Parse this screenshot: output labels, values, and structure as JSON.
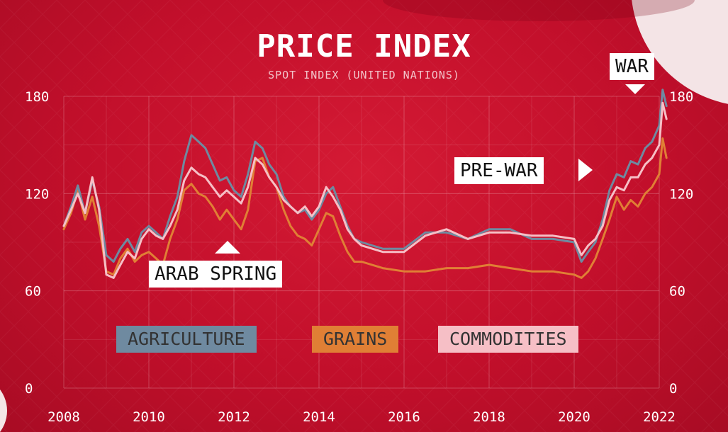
{
  "chart_data": {
    "type": "line",
    "title": "PRICE INDEX",
    "subtitle": "SPOT INDEX (UNITED NATIONS)",
    "xlim": [
      2008,
      2022
    ],
    "ylim": [
      0,
      180
    ],
    "x_ticks": [
      2008,
      2010,
      2012,
      2014,
      2016,
      2018,
      2020,
      2022
    ],
    "y_ticks": [
      0,
      60,
      120,
      180
    ],
    "grid": true,
    "legend_placement": "bottom",
    "series": [
      {
        "name": "AGRICULTURE",
        "color": "#6f8aa0",
        "x": [
          2008.0,
          2008.17,
          2008.33,
          2008.5,
          2008.67,
          2008.83,
          2009.0,
          2009.17,
          2009.33,
          2009.5,
          2009.67,
          2009.83,
          2010.0,
          2010.17,
          2010.33,
          2010.5,
          2010.67,
          2010.83,
          2011.0,
          2011.17,
          2011.33,
          2011.5,
          2011.67,
          2011.83,
          2012.0,
          2012.17,
          2012.33,
          2012.5,
          2012.67,
          2012.83,
          2013.0,
          2013.17,
          2013.33,
          2013.5,
          2013.67,
          2013.83,
          2014.0,
          2014.17,
          2014.33,
          2014.5,
          2014.67,
          2014.83,
          2015.0,
          2015.5,
          2016.0,
          2016.5,
          2017.0,
          2017.5,
          2018.0,
          2018.5,
          2019.0,
          2019.5,
          2020.0,
          2020.17,
          2020.33,
          2020.5,
          2020.67,
          2020.83,
          2021.0,
          2021.17,
          2021.33,
          2021.5,
          2021.67,
          2021.83,
          2022.0,
          2022.08,
          2022.17
        ],
        "values": [
          100,
          112,
          125,
          108,
          128,
          112,
          82,
          78,
          86,
          92,
          84,
          96,
          100,
          96,
          92,
          106,
          118,
          140,
          156,
          152,
          148,
          138,
          128,
          130,
          122,
          118,
          132,
          152,
          148,
          138,
          132,
          118,
          112,
          108,
          110,
          104,
          110,
          120,
          124,
          112,
          100,
          92,
          90,
          86,
          86,
          96,
          96,
          92,
          98,
          98,
          92,
          92,
          90,
          78,
          84,
          90,
          104,
          122,
          132,
          130,
          140,
          138,
          148,
          152,
          162,
          184,
          174
        ]
      },
      {
        "name": "GRAINS",
        "color": "#e07f35",
        "x": [
          2008.0,
          2008.17,
          2008.33,
          2008.5,
          2008.67,
          2008.83,
          2009.0,
          2009.17,
          2009.33,
          2009.5,
          2009.67,
          2009.83,
          2010.0,
          2010.17,
          2010.33,
          2010.5,
          2010.67,
          2010.83,
          2011.0,
          2011.17,
          2011.33,
          2011.5,
          2011.67,
          2011.83,
          2012.0,
          2012.17,
          2012.33,
          2012.5,
          2012.67,
          2012.83,
          2013.0,
          2013.17,
          2013.33,
          2013.5,
          2013.67,
          2013.83,
          2014.0,
          2014.17,
          2014.33,
          2014.5,
          2014.67,
          2014.83,
          2015.0,
          2015.5,
          2016.0,
          2016.5,
          2017.0,
          2017.5,
          2018.0,
          2018.5,
          2019.0,
          2019.5,
          2020.0,
          2020.17,
          2020.33,
          2020.5,
          2020.67,
          2020.83,
          2021.0,
          2021.17,
          2021.33,
          2021.5,
          2021.67,
          2021.83,
          2022.0,
          2022.08,
          2022.17
        ],
        "values": [
          98,
          108,
          122,
          104,
          118,
          100,
          72,
          70,
          80,
          86,
          78,
          82,
          84,
          80,
          76,
          92,
          104,
          122,
          126,
          120,
          118,
          112,
          104,
          110,
          104,
          98,
          110,
          140,
          142,
          130,
          124,
          110,
          100,
          94,
          92,
          88,
          98,
          108,
          106,
          94,
          84,
          78,
          78,
          74,
          72,
          72,
          74,
          74,
          76,
          74,
          72,
          72,
          70,
          68,
          72,
          80,
          92,
          104,
          118,
          110,
          116,
          112,
          120,
          124,
          132,
          154,
          142
        ]
      },
      {
        "name": "COMMODITIES",
        "color": "#f6bfc6",
        "x": [
          2008.0,
          2008.17,
          2008.33,
          2008.5,
          2008.67,
          2008.83,
          2009.0,
          2009.17,
          2009.33,
          2009.5,
          2009.67,
          2009.83,
          2010.0,
          2010.17,
          2010.33,
          2010.5,
          2010.67,
          2010.83,
          2011.0,
          2011.17,
          2011.33,
          2011.5,
          2011.67,
          2011.83,
          2012.0,
          2012.17,
          2012.33,
          2012.5,
          2012.67,
          2012.83,
          2013.0,
          2013.17,
          2013.33,
          2013.5,
          2013.67,
          2013.83,
          2014.0,
          2014.17,
          2014.33,
          2014.5,
          2014.67,
          2014.83,
          2015.0,
          2015.5,
          2016.0,
          2016.5,
          2017.0,
          2017.5,
          2018.0,
          2018.5,
          2019.0,
          2019.5,
          2020.0,
          2020.17,
          2020.33,
          2020.5,
          2020.67,
          2020.83,
          2021.0,
          2021.17,
          2021.33,
          2021.5,
          2021.67,
          2021.83,
          2022.0,
          2022.08,
          2022.17
        ],
        "values": [
          100,
          110,
          120,
          108,
          130,
          110,
          70,
          68,
          76,
          84,
          80,
          92,
          98,
          94,
          92,
          100,
          110,
          128,
          136,
          132,
          130,
          124,
          118,
          122,
          118,
          114,
          124,
          142,
          138,
          130,
          124,
          116,
          112,
          108,
          112,
          106,
          112,
          124,
          118,
          110,
          98,
          92,
          88,
          84,
          84,
          94,
          98,
          92,
          96,
          96,
          94,
          94,
          92,
          82,
          88,
          92,
          100,
          116,
          124,
          122,
          130,
          130,
          138,
          142,
          150,
          176,
          166
        ]
      }
    ],
    "annotations": [
      "ARAB SPRING",
      "PRE-WAR",
      "WAR"
    ]
  },
  "labels": {
    "arab_spring": "ARAB SPRING",
    "pre_war": "PRE-WAR",
    "war": "WAR"
  },
  "legend": [
    {
      "label": "AGRICULTURE",
      "bg": "#6f8aa0"
    },
    {
      "label": "GRAINS",
      "bg": "#e07f35"
    },
    {
      "label": "COMMODITIES",
      "bg": "#f6bfc6"
    }
  ]
}
